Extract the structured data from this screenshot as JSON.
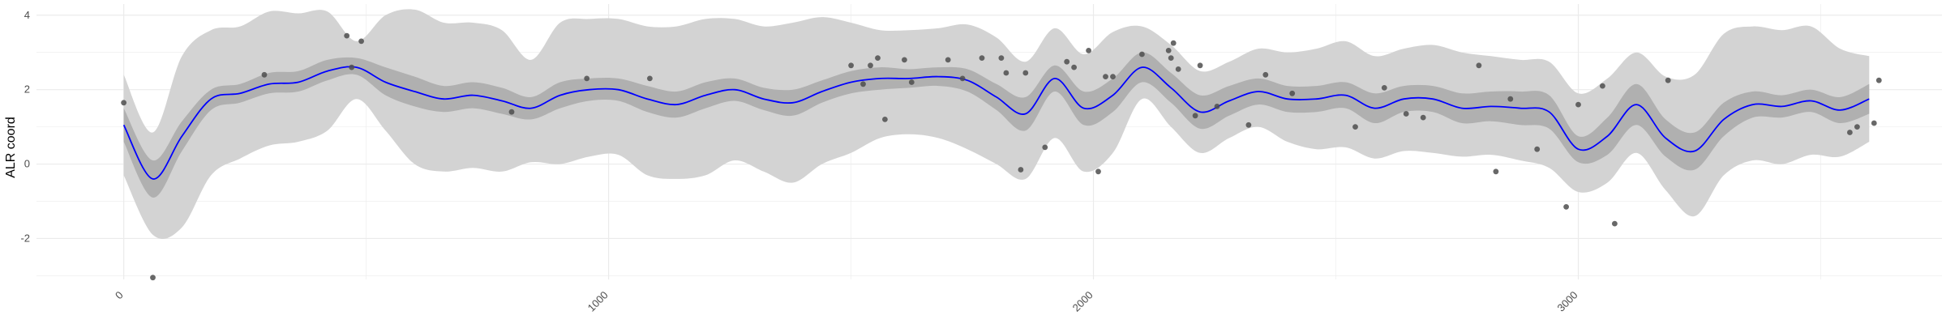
{
  "chart_data": {
    "type": "line",
    "title": "",
    "xlabel": "",
    "ylabel": "ALR coord",
    "xlim": [
      -180,
      3750
    ],
    "ylim": [
      -3.1,
      4.3
    ],
    "x_ticks": [
      0,
      1000,
      2000,
      3000
    ],
    "x_tick_labels": [
      "0",
      "1000",
      "2000",
      "3000"
    ],
    "y_ticks": [
      -2,
      0,
      2,
      4
    ],
    "y_tick_labels": [
      "-2",
      "0",
      "2",
      "4"
    ],
    "grid": true,
    "colors": {
      "mean_line": "#0000ff",
      "inner_band": "#b0b0b0",
      "outer_band": "#d3d3d3",
      "points": "#4d4d4d",
      "grid": "#ebebeb"
    },
    "x": [
      0,
      60,
      120,
      180,
      240,
      300,
      360,
      420,
      480,
      540,
      600,
      660,
      720,
      780,
      840,
      900,
      960,
      1020,
      1080,
      1140,
      1200,
      1260,
      1320,
      1380,
      1440,
      1500,
      1560,
      1620,
      1680,
      1740,
      1800,
      1860,
      1920,
      1980,
      2040,
      2100,
      2160,
      2220,
      2280,
      2340,
      2400,
      2460,
      2520,
      2580,
      2640,
      2700,
      2760,
      2820,
      2880,
      2940,
      3000,
      3060,
      3120,
      3180,
      3240,
      3300,
      3360,
      3420,
      3480,
      3540,
      3600
    ],
    "series": [
      {
        "values": [
          1.05,
          -0.4,
          0.75,
          1.75,
          1.9,
          2.15,
          2.2,
          2.5,
          2.6,
          2.2,
          1.95,
          1.75,
          1.85,
          1.7,
          1.5,
          1.85,
          2.0,
          2.0,
          1.75,
          1.6,
          1.85,
          2.0,
          1.75,
          1.65,
          1.95,
          2.2,
          2.3,
          2.3,
          2.35,
          2.25,
          1.8,
          1.35,
          2.3,
          1.5,
          1.85,
          2.6,
          2.05,
          1.4,
          1.7,
          1.95,
          1.75,
          1.75,
          1.85,
          1.5,
          1.75,
          1.75,
          1.5,
          1.55,
          1.5,
          1.4,
          0.4,
          0.75,
          1.6,
          0.7,
          0.35,
          1.2,
          1.6,
          1.55,
          1.7,
          1.45,
          1.75
        ]
      },
      {
        "values": [
          0.6,
          -0.9,
          0.35,
          1.45,
          1.65,
          1.9,
          1.95,
          2.25,
          2.4,
          1.85,
          1.55,
          1.4,
          1.5,
          1.35,
          1.2,
          1.5,
          1.7,
          1.7,
          1.4,
          1.25,
          1.5,
          1.7,
          1.45,
          1.3,
          1.65,
          1.9,
          2.0,
          2.05,
          2.1,
          1.95,
          1.45,
          0.9,
          1.95,
          1.05,
          1.4,
          2.2,
          1.65,
          0.95,
          1.3,
          1.6,
          1.4,
          1.4,
          1.5,
          1.1,
          1.4,
          1.4,
          1.1,
          1.15,
          1.05,
          0.95,
          0.05,
          0.25,
          1.05,
          0.2,
          -0.15,
          0.75,
          1.25,
          1.25,
          1.4,
          1.1,
          1.35
        ]
      },
      {
        "values": [
          1.5,
          0.1,
          1.15,
          2.0,
          2.15,
          2.45,
          2.5,
          2.8,
          2.85,
          2.6,
          2.35,
          2.1,
          2.2,
          2.05,
          1.8,
          2.2,
          2.3,
          2.3,
          2.1,
          1.95,
          2.2,
          2.3,
          2.05,
          2.0,
          2.25,
          2.5,
          2.6,
          2.55,
          2.6,
          2.55,
          2.15,
          1.8,
          2.65,
          1.95,
          2.3,
          3.0,
          2.45,
          1.85,
          2.1,
          2.3,
          2.1,
          2.1,
          2.2,
          1.9,
          2.1,
          2.1,
          1.9,
          1.95,
          1.95,
          1.85,
          0.75,
          1.25,
          2.15,
          1.2,
          0.85,
          1.65,
          1.95,
          1.85,
          2.0,
          1.8,
          2.15
        ]
      },
      {
        "values": [
          -0.3,
          -1.9,
          -1.7,
          -0.3,
          0.15,
          0.5,
          0.6,
          0.9,
          1.75,
          0.9,
          0.0,
          -0.2,
          -0.1,
          -0.2,
          0.05,
          0.0,
          0.2,
          0.25,
          -0.3,
          -0.4,
          -0.3,
          0.1,
          -0.2,
          -0.5,
          0.0,
          0.3,
          0.7,
          0.8,
          0.7,
          0.4,
          0.0,
          -0.4,
          0.7,
          -0.2,
          0.3,
          1.75,
          1.0,
          0.3,
          0.7,
          1.0,
          0.6,
          0.4,
          0.45,
          0.15,
          0.35,
          0.3,
          0.2,
          0.25,
          0.1,
          -0.1,
          -0.75,
          -0.5,
          0.3,
          -0.7,
          -1.4,
          -0.3,
          0.1,
          0.0,
          0.25,
          0.2,
          0.6
        ]
      },
      {
        "values": [
          2.4,
          0.85,
          2.9,
          3.6,
          3.7,
          4.1,
          4.05,
          4.1,
          3.3,
          4.0,
          4.15,
          3.8,
          3.8,
          3.6,
          2.8,
          3.8,
          3.9,
          3.9,
          3.7,
          3.7,
          3.9,
          3.9,
          3.7,
          3.8,
          3.95,
          3.8,
          3.6,
          3.6,
          3.65,
          3.75,
          3.4,
          2.75,
          3.65,
          2.95,
          3.55,
          3.7,
          3.2,
          2.5,
          2.75,
          3.1,
          3.0,
          3.1,
          3.3,
          2.9,
          3.1,
          3.2,
          3.0,
          2.9,
          2.8,
          2.75,
          1.9,
          2.3,
          3.0,
          2.35,
          2.4,
          3.5,
          3.7,
          3.6,
          3.7,
          3.1,
          2.9
        ]
      }
    ],
    "points": {
      "x": [
        0,
        60,
        290,
        460,
        470,
        490,
        800,
        955,
        1085,
        1500,
        1525,
        1540,
        1555,
        1570,
        1610,
        1625,
        1700,
        1730,
        1770,
        1810,
        1820,
        1850,
        1860,
        1900,
        1945,
        1960,
        1990,
        2010,
        2025,
        2040,
        2100,
        2155,
        2160,
        2165,
        2175,
        2210,
        2220,
        2255,
        2320,
        2355,
        2410,
        2540,
        2600,
        2645,
        2680,
        2795,
        2830,
        2860,
        2915,
        2975,
        3000,
        3050,
        3075,
        3185,
        3560,
        3575,
        3610,
        3620
      ],
      "y": [
        1.65,
        -3.05,
        2.4,
        3.45,
        2.6,
        3.3,
        1.4,
        2.3,
        2.3,
        2.65,
        2.15,
        2.65,
        2.85,
        1.2,
        2.8,
        2.2,
        2.8,
        2.3,
        2.85,
        2.85,
        2.45,
        -0.15,
        2.45,
        0.45,
        2.75,
        2.6,
        3.05,
        -0.2,
        2.35,
        2.35,
        2.95,
        3.05,
        2.85,
        3.25,
        2.55,
        1.3,
        2.65,
        1.55,
        1.05,
        2.4,
        1.9,
        1.0,
        2.05,
        1.35,
        1.25,
        2.65,
        -0.2,
        1.75,
        0.4,
        -1.15,
        1.6,
        2.1,
        -1.6,
        2.25,
        0.85,
        1.0,
        1.1,
        2.25
      ]
    }
  }
}
